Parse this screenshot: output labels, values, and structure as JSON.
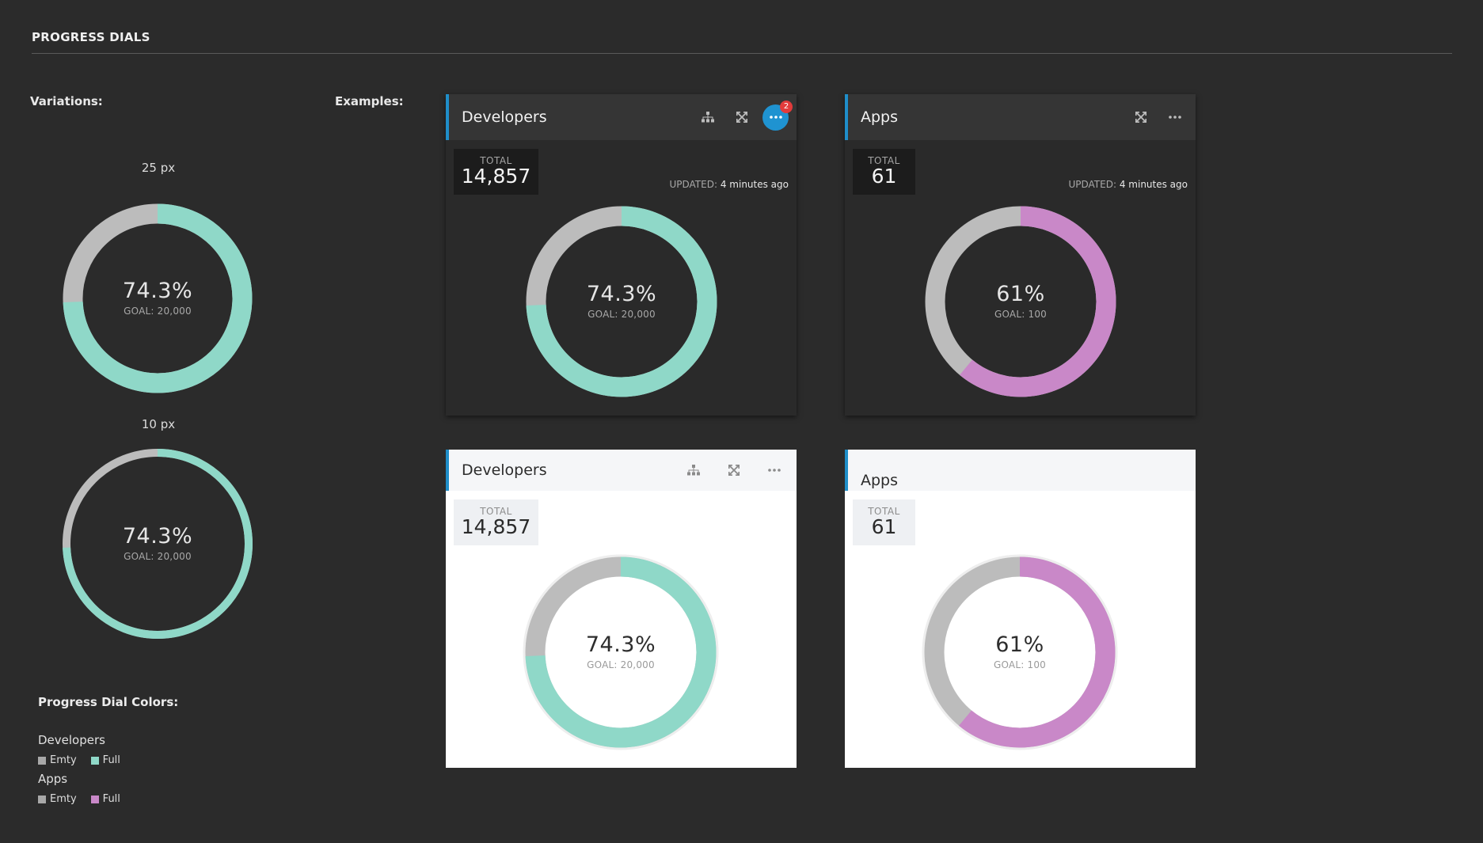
{
  "page": {
    "title": "PROGRESS DIALS"
  },
  "sections": {
    "variations": "Variations:",
    "examples": "Examples:"
  },
  "colors": {
    "empty": "#bcbcbc",
    "developers_full": "#8fd8c8",
    "apps_full": "#c988c8",
    "accent": "#1f8ec9"
  },
  "variations": [
    {
      "label": "25 px",
      "value": "74.3%",
      "goal": "GOAL: 20,000",
      "fraction": 0.743
    },
    {
      "label": "10 px",
      "value": "74.3%",
      "goal": "GOAL: 20,000",
      "fraction": 0.743
    }
  ],
  "cards": {
    "dark_developers": {
      "title": "Developers",
      "total_label": "TOTAL",
      "total_value": "14,857",
      "updated_label": "UPDATED:",
      "updated_value": "4 minutes ago",
      "dial_value": "74.3%",
      "dial_goal": "GOAL: 20,000",
      "fraction": 0.743,
      "menu_badge": "2",
      "icons": [
        "hierarchy-icon",
        "fullscreen-icon",
        "more-icon"
      ]
    },
    "dark_apps": {
      "title": "Apps",
      "total_label": "TOTAL",
      "total_value": "61",
      "updated_label": "UPDATED:",
      "updated_value": "4 minutes ago",
      "dial_value": "61%",
      "dial_goal": "GOAL: 100",
      "fraction": 0.61,
      "icons": [
        "fullscreen-icon",
        "more-icon"
      ]
    },
    "light_developers": {
      "title": "Developers",
      "total_label": "TOTAL",
      "total_value": "14,857",
      "dial_value": "74.3%",
      "dial_goal": "GOAL: 20,000",
      "fraction": 0.743,
      "icons": [
        "hierarchy-icon",
        "fullscreen-icon",
        "more-icon"
      ]
    },
    "light_apps": {
      "title": "Apps",
      "total_label": "TOTAL",
      "total_value": "61",
      "dial_value": "61%",
      "dial_goal": "GOAL: 100",
      "fraction": 0.61
    }
  },
  "legend": {
    "title": "Progress Dial Colors:",
    "groups": [
      {
        "name": "Developers",
        "empty_label": "Emty",
        "full_label": "Full"
      },
      {
        "name": "Apps",
        "empty_label": "Emty",
        "full_label": "Full"
      }
    ]
  }
}
